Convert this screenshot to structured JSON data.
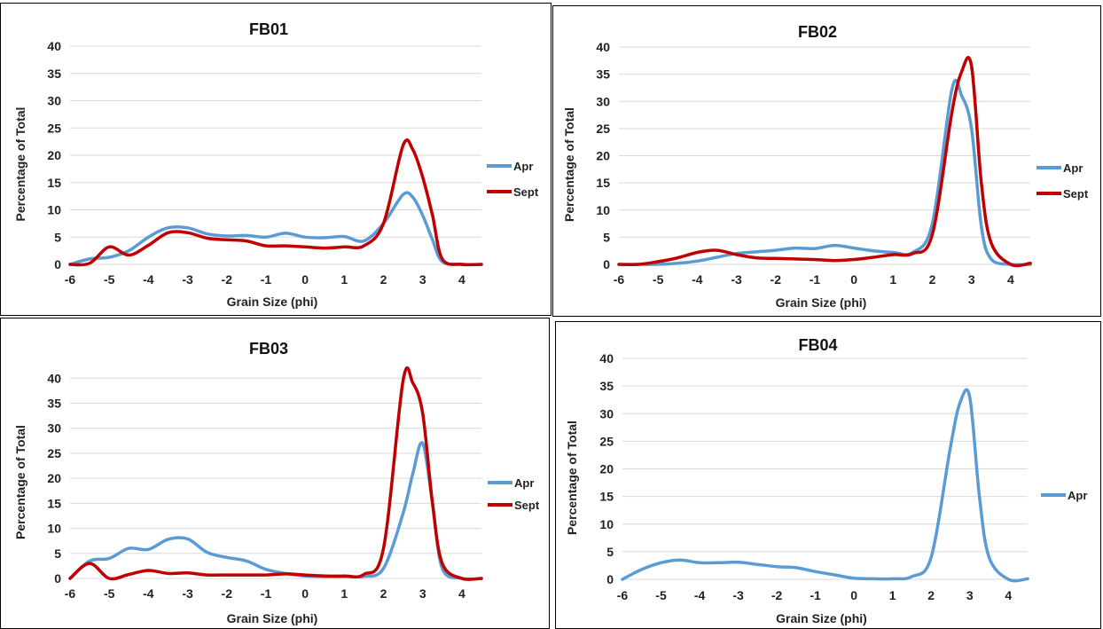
{
  "colors": {
    "Apr": "#5b9bd5",
    "Sept": "#c00000",
    "grid": "#d9d9d9"
  },
  "chart_data": [
    {
      "type": "line",
      "title": "FB01",
      "xlabel": "Grain Size (phi)",
      "ylabel": "Percentage of Total",
      "xlim": [
        -6,
        4.5
      ],
      "ylim": [
        0,
        40
      ],
      "xticks": [
        -6,
        -5,
        -4,
        -3,
        -2,
        -1,
        0,
        1,
        2,
        3,
        4
      ],
      "yticks": [
        0,
        5,
        10,
        15,
        20,
        25,
        30,
        35,
        40
      ],
      "grid": "horizontal",
      "legend_position": "right",
      "series": [
        {
          "name": "Apr",
          "x": [
            -6,
            -5.5,
            -5,
            -4.5,
            -4,
            -3.5,
            -3,
            -2.5,
            -2,
            -1.5,
            -1,
            -0.5,
            0,
            0.5,
            1,
            1.5,
            2,
            2.5,
            2.75,
            3,
            3.25,
            3.5,
            4,
            4.5
          ],
          "y": [
            0,
            1,
            1.3,
            2.5,
            5,
            6.7,
            6.7,
            5.6,
            5.2,
            5.3,
            5,
            5.7,
            5,
            4.9,
            5.1,
            4.3,
            7.5,
            12.8,
            12.3,
            9,
            4.5,
            0.5,
            0,
            0
          ]
        },
        {
          "name": "Sept",
          "x": [
            -6,
            -5.5,
            -5,
            -4.5,
            -4,
            -3.5,
            -3,
            -2.5,
            -2,
            -1.5,
            -1,
            -0.5,
            0,
            0.5,
            1,
            1.5,
            2,
            2.5,
            2.75,
            3,
            3.25,
            3.5,
            4,
            4.5
          ],
          "y": [
            0,
            0.2,
            3.2,
            1.7,
            3.5,
            5.8,
            5.8,
            4.8,
            4.5,
            4.3,
            3.4,
            3.4,
            3.2,
            3.0,
            3.2,
            3.4,
            7.5,
            21.8,
            21.0,
            16,
            9,
            1,
            0,
            0
          ]
        }
      ]
    },
    {
      "type": "line",
      "title": "FB02",
      "xlabel": "Grain Size (phi)",
      "ylabel": "Percentage of Total",
      "xlim": [
        -6,
        4.5
      ],
      "ylim": [
        0,
        40
      ],
      "xticks": [
        -6,
        -5,
        -4,
        -3,
        -2,
        -1,
        0,
        1,
        2,
        3,
        4
      ],
      "yticks": [
        0,
        5,
        10,
        15,
        20,
        25,
        30,
        35,
        40
      ],
      "grid": "horizontal",
      "legend_position": "right",
      "series": [
        {
          "name": "Apr",
          "x": [
            -6,
            -5.5,
            -5,
            -4.5,
            -4,
            -3.5,
            -3,
            -2.5,
            -2,
            -1.5,
            -1,
            -0.5,
            0,
            0.5,
            1,
            1.5,
            2,
            2.5,
            2.75,
            3,
            3.25,
            3.5,
            4,
            4.5
          ],
          "y": [
            0,
            0,
            0,
            0.2,
            0.6,
            1.3,
            2,
            2.3,
            2.6,
            3,
            2.9,
            3.5,
            3,
            2.5,
            2.2,
            2.2,
            7.5,
            32.2,
            31,
            25,
            7,
            1,
            0,
            0
          ]
        },
        {
          "name": "Sept",
          "x": [
            -6,
            -5.5,
            -5,
            -4.5,
            -4,
            -3.5,
            -3,
            -2.5,
            -2,
            -1.5,
            -1,
            -0.5,
            0,
            0.5,
            1,
            1.5,
            2,
            2.5,
            2.75,
            3,
            3.25,
            3.5,
            4,
            4.5
          ],
          "y": [
            0,
            0,
            0.5,
            1.2,
            2.2,
            2.6,
            1.8,
            1.2,
            1.1,
            1,
            0.9,
            0.7,
            0.9,
            1.3,
            1.8,
            2,
            5.5,
            28,
            35.5,
            36.5,
            15,
            4,
            0,
            0.2
          ]
        }
      ]
    },
    {
      "type": "line",
      "title": "FB03",
      "xlabel": "Grain Size (phi)",
      "ylabel": "Percentage of Total",
      "xlim": [
        -6,
        4.5
      ],
      "ylim": [
        0,
        42
      ],
      "xticks": [
        -6,
        -5,
        -4,
        -3,
        -2,
        -1,
        0,
        1,
        2,
        3,
        4
      ],
      "yticks": [
        0,
        5,
        10,
        15,
        20,
        25,
        30,
        35,
        40
      ],
      "grid": "horizontal",
      "legend_position": "right",
      "series": [
        {
          "name": "Apr",
          "x": [
            -6,
            -5.5,
            -5,
            -4.5,
            -4,
            -3.5,
            -3,
            -2.5,
            -2,
            -1.5,
            -1,
            -0.5,
            0,
            0.5,
            1,
            1.5,
            2,
            2.5,
            2.75,
            3,
            3.25,
            3.5,
            4,
            4.5
          ],
          "y": [
            0,
            3.5,
            4,
            6,
            5.8,
            7.8,
            7.9,
            5.2,
            4.2,
            3.5,
            1.8,
            1,
            0.5,
            0.4,
            0.4,
            0.4,
            2,
            13,
            21,
            27,
            15,
            2,
            0,
            0
          ]
        },
        {
          "name": "Sept",
          "x": [
            -6,
            -5.5,
            -5,
            -4.5,
            -4,
            -3.5,
            -3,
            -2.5,
            -2,
            -1.5,
            -1,
            -0.5,
            0,
            0.5,
            1,
            1.5,
            2,
            2.5,
            2.75,
            3,
            3.25,
            3.5,
            4,
            4.5
          ],
          "y": [
            0,
            3,
            0,
            0.8,
            1.6,
            1,
            1.1,
            0.7,
            0.7,
            0.7,
            0.7,
            0.9,
            0.7,
            0.5,
            0.5,
            0.8,
            6,
            39.5,
            39,
            33,
            15,
            3,
            0,
            0
          ]
        }
      ]
    },
    {
      "type": "line",
      "title": "FB04",
      "xlabel": "Grain Size (phi)",
      "ylabel": "Percentage of Total",
      "xlim": [
        -6,
        4.5
      ],
      "ylim": [
        0,
        40
      ],
      "xticks": [
        -6,
        -5,
        -4,
        -3,
        -2,
        -1,
        0,
        1,
        2,
        3,
        4
      ],
      "yticks": [
        0,
        5,
        10,
        15,
        20,
        25,
        30,
        35,
        40
      ],
      "grid": "horizontal",
      "legend_position": "right",
      "series": [
        {
          "name": "Apr",
          "x": [
            -6,
            -5.5,
            -5,
            -4.5,
            -4,
            -3.5,
            -3,
            -2.5,
            -2,
            -1.5,
            -1,
            -0.5,
            0,
            0.5,
            1,
            1.5,
            2,
            2.5,
            2.75,
            3,
            3.25,
            3.5,
            4,
            4.5
          ],
          "y": [
            0,
            1.8,
            3,
            3.5,
            3,
            3,
            3.1,
            2.7,
            2.3,
            2.1,
            1.4,
            0.8,
            0.2,
            0.1,
            0.1,
            0.5,
            4,
            24,
            32,
            33,
            15,
            4,
            0,
            0.1
          ]
        }
      ]
    }
  ]
}
